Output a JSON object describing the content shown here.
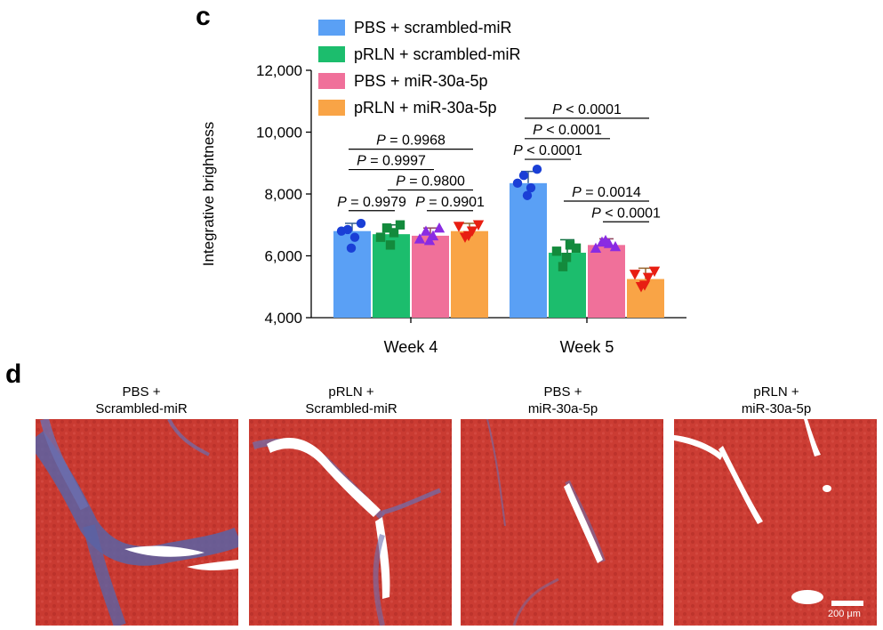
{
  "panels": {
    "c_letter": "c",
    "d_letter": "d"
  },
  "chart_data": {
    "type": "bar",
    "ylabel": "Integrative brightness",
    "xlabel": "",
    "ylim": [
      4000,
      12000
    ],
    "yticks": [
      4000,
      6000,
      8000,
      10000,
      12000
    ],
    "ytick_labels": [
      "4,000",
      "6,000",
      "8,000",
      "10,000",
      "12,000"
    ],
    "categories": [
      "Week 4",
      "Week 5"
    ],
    "legend_position": "top",
    "series": [
      {
        "name": "PBS + scrambled-miR",
        "color": "#5aa0f5",
        "marker": "circle",
        "values": [
          6800,
          8350
        ],
        "errors": [
          250,
          380
        ],
        "points": [
          [
            6800,
            6850,
            6600,
            7050,
            6250
          ],
          [
            8350,
            8600,
            8200,
            8800,
            7950
          ]
        ]
      },
      {
        "name": "pRLN + scrambled-miR",
        "color": "#1cbd6d",
        "marker": "square",
        "values": [
          6700,
          6100
        ],
        "errors": [
          300,
          420
        ],
        "points": [
          [
            6600,
            6900,
            6750,
            7000,
            6350
          ],
          [
            6150,
            5650,
            6350,
            6250,
            5950
          ]
        ]
      },
      {
        "name": "PBS + miR-30a-5p",
        "color": "#f0709a",
        "marker": "triangle-up",
        "values": [
          6650,
          6350
        ],
        "errors": [
          250,
          200
        ],
        "points": [
          [
            6550,
            6800,
            6650,
            6900,
            6500
          ],
          [
            6250,
            6450,
            6400,
            6300,
            6500
          ]
        ]
      },
      {
        "name": "pRLN + miR-30a-5p",
        "color": "#f9a446",
        "marker": "triangle-down",
        "values": [
          6800,
          5250
        ],
        "errors": [
          250,
          350
        ],
        "points": [
          [
            6950,
            6600,
            6800,
            7000,
            6650
          ],
          [
            5400,
            5000,
            5300,
            5500,
            5050
          ]
        ]
      }
    ],
    "annotations": [
      {
        "label": "P = 0.9979",
        "group": 0,
        "from": 0,
        "to": 1,
        "y": 7460
      },
      {
        "label": "P = 0.9901",
        "group": 0,
        "from": 2,
        "to": 3,
        "y": 7460
      },
      {
        "label": "P = 0.9800",
        "group": 0,
        "from": 1,
        "to": 3,
        "y": 8130
      },
      {
        "label": "P = 0.9997",
        "group": 0,
        "from": 0,
        "to": 2,
        "y": 8790
      },
      {
        "label": "P = 0.9968",
        "group": 0,
        "from": 0,
        "to": 3,
        "y": 9450
      },
      {
        "label": "P < 0.0001",
        "group": 1,
        "from": 0,
        "to": 1,
        "y": 9120
      },
      {
        "label": "P < 0.0001",
        "group": 1,
        "from": 0,
        "to": 2,
        "y": 9790
      },
      {
        "label": "P < 0.0001",
        "group": 1,
        "from": 0,
        "to": 3,
        "y": 10450
      },
      {
        "label": "P = 0.0014",
        "group": 1,
        "from": 1,
        "to": 3,
        "y": 7770
      },
      {
        "label": "P < 0.0001",
        "group": 1,
        "from": 2,
        "to": 3,
        "y": 7100
      }
    ]
  },
  "micrographs": [
    {
      "caption_line1": "PBS +",
      "caption_line2": "Scrambled-miR"
    },
    {
      "caption_line1": "pRLN +",
      "caption_line2": "Scrambled-miR"
    },
    {
      "caption_line1": "PBS +",
      "caption_line2": "miR-30a-5p"
    },
    {
      "caption_line1": "pRLN +",
      "caption_line2": "miR-30a-5p"
    }
  ],
  "scale_bar": {
    "label": "200 μm"
  },
  "colors": {
    "tissue_red": "#c8372f",
    "tissue_dark": "#a82a26",
    "collagen_blue": "#5a63a5"
  }
}
